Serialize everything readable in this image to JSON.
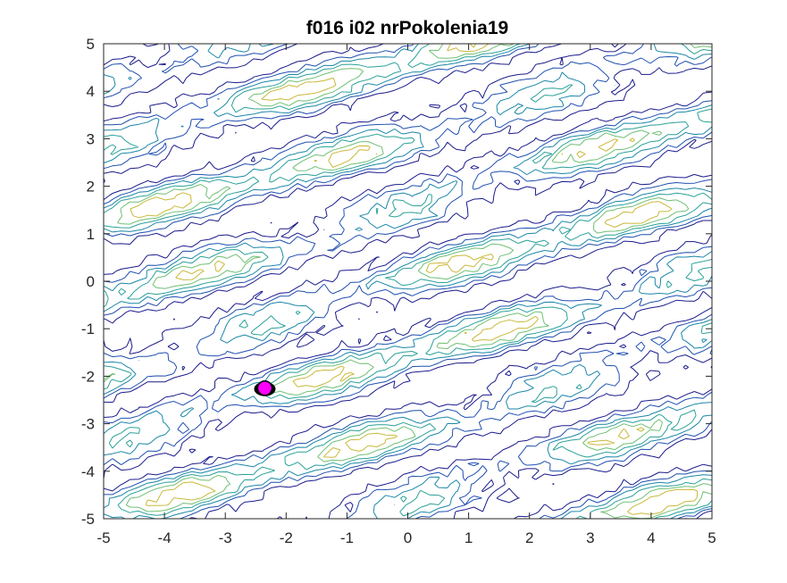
{
  "chart_data": {
    "type": "contour",
    "title": "f016 i02 nrPokolenia19",
    "xlabel": "",
    "ylabel": "",
    "xlim": [
      -5,
      5
    ],
    "ylim": [
      -5,
      5
    ],
    "x_ticks": [
      "-5",
      "-4",
      "-3",
      "-2",
      "-1",
      "0",
      "1",
      "2",
      "3",
      "4",
      "5"
    ],
    "y_ticks": [
      "-5",
      "-4",
      "-3",
      "-2",
      "-1",
      "0",
      "1",
      "2",
      "3",
      "4",
      "5"
    ],
    "grid": false,
    "legend": "none",
    "contour_colormap": [
      "#1a1a8c",
      "#1f4fb0",
      "#1a87a8",
      "#2aa198",
      "#6fbf73",
      "#c9b83a"
    ],
    "ridge_direction": [
      1.0,
      0.38
    ],
    "ridge_spacing_y": 1.55,
    "marked_points": [
      {
        "name": "best",
        "x": -2.35,
        "y": -2.25,
        "fill": "#ff00ff",
        "edge": "#000000"
      }
    ],
    "colors": {
      "axis": "#262626",
      "background": "#ffffff",
      "title": "#000000"
    }
  }
}
